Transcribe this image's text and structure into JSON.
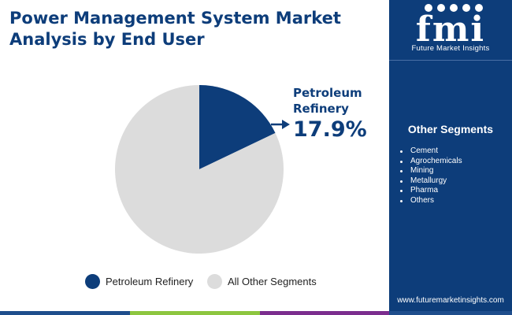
{
  "title": "Power Management System Market Analysis by End User",
  "callout": {
    "label": "Petroleum Refinery",
    "value": "17.9%"
  },
  "colors": {
    "navy": "#0d3d7a",
    "grey": "#dcdcdc",
    "bar": [
      "#1f4e8c",
      "#8dc63f",
      "#7b2d8e",
      "#1f4e8c"
    ]
  },
  "chart_data": {
    "type": "pie",
    "labels": [
      "Petroleum Refinery",
      "All Other Segments"
    ],
    "values": [
      17.9,
      82.1
    ],
    "colors": [
      "#0d3d7a",
      "#dcdcdc"
    ],
    "legend_position": "bottom"
  },
  "legend": [
    {
      "label": "Petroleum Refinery",
      "color": "#0d3d7a"
    },
    {
      "label": "All Other Segments",
      "color": "#dcdcdc"
    }
  ],
  "sidebar": {
    "logo_letters": "fmi",
    "logo_text": "Future Market Insights",
    "segments_title": "Other Segments",
    "segments": [
      "Cement",
      "Agrochemicals",
      "Mining",
      "Metallurgy",
      "Pharma",
      "Others"
    ],
    "website": "www.futuremarketinsights.com"
  }
}
